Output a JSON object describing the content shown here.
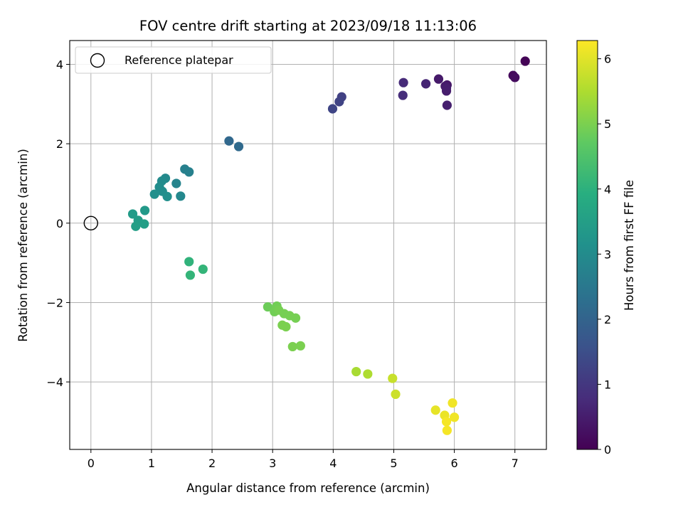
{
  "chart_data": {
    "type": "scatter",
    "title": "FOV centre drift starting at 2023/09/18 11:13:06",
    "xlabel": "Angular distance from reference (arcmin)",
    "ylabel": "Rotation from reference (arcmin)",
    "xlim": [
      -0.35,
      7.52
    ],
    "ylim": [
      -5.7,
      4.6
    ],
    "xticks": [
      0,
      1,
      2,
      3,
      4,
      5,
      6,
      7
    ],
    "yticks": [
      -4,
      -2,
      0,
      2,
      4
    ],
    "xtick_labels": [
      "0",
      "1",
      "2",
      "3",
      "4",
      "5",
      "6",
      "7"
    ],
    "ytick_labels": [
      "−4",
      "−2",
      "0",
      "2",
      "4"
    ],
    "grid": true,
    "legend": {
      "placement": "top-left",
      "entries": [
        "Reference platepar"
      ]
    },
    "reference_point": {
      "x": 0,
      "y": 0,
      "marker": "open circle"
    },
    "colorbar": {
      "label": "Hours from first FF file",
      "range": [
        0,
        6.28
      ],
      "ticks": [
        0,
        1,
        2,
        3,
        4,
        5,
        6
      ],
      "tick_labels": [
        "0",
        "1",
        "2",
        "3",
        "4",
        "5",
        "6"
      ],
      "colormap": "viridis"
    },
    "points": [
      {
        "x": 7.17,
        "y": 4.08,
        "c": 0.05
      },
      {
        "x": 6.97,
        "y": 3.72,
        "c": 0.15
      },
      {
        "x": 7.0,
        "y": 3.67,
        "c": 0.2
      },
      {
        "x": 5.74,
        "y": 3.63,
        "c": 0.45
      },
      {
        "x": 5.88,
        "y": 3.48,
        "c": 0.4
      },
      {
        "x": 5.85,
        "y": 3.45,
        "c": 0.45
      },
      {
        "x": 5.87,
        "y": 3.4,
        "c": 0.5
      },
      {
        "x": 5.87,
        "y": 3.33,
        "c": 0.5
      },
      {
        "x": 5.88,
        "y": 2.97,
        "c": 0.55
      },
      {
        "x": 5.53,
        "y": 3.51,
        "c": 0.65
      },
      {
        "x": 5.16,
        "y": 3.54,
        "c": 0.75
      },
      {
        "x": 5.15,
        "y": 3.22,
        "c": 0.8
      },
      {
        "x": 4.14,
        "y": 3.18,
        "c": 1.2
      },
      {
        "x": 4.1,
        "y": 3.06,
        "c": 1.25
      },
      {
        "x": 3.99,
        "y": 2.88,
        "c": 1.3
      },
      {
        "x": 2.28,
        "y": 2.07,
        "c": 2.1
      },
      {
        "x": 2.44,
        "y": 1.93,
        "c": 2.15
      },
      {
        "x": 1.55,
        "y": 1.36,
        "c": 2.7
      },
      {
        "x": 1.62,
        "y": 1.29,
        "c": 2.7
      },
      {
        "x": 1.41,
        "y": 1.0,
        "c": 2.8
      },
      {
        "x": 1.48,
        "y": 0.68,
        "c": 2.9
      },
      {
        "x": 1.23,
        "y": 1.13,
        "c": 2.95
      },
      {
        "x": 1.17,
        "y": 1.06,
        "c": 3.0
      },
      {
        "x": 1.13,
        "y": 0.91,
        "c": 3.05
      },
      {
        "x": 1.18,
        "y": 0.8,
        "c": 3.05
      },
      {
        "x": 1.05,
        "y": 0.73,
        "c": 3.1
      },
      {
        "x": 1.26,
        "y": 0.67,
        "c": 3.1
      },
      {
        "x": 0.89,
        "y": 0.32,
        "c": 3.35
      },
      {
        "x": 0.69,
        "y": 0.23,
        "c": 3.4
      },
      {
        "x": 0.78,
        "y": 0.07,
        "c": 3.45
      },
      {
        "x": 0.88,
        "y": -0.02,
        "c": 3.5
      },
      {
        "x": 0.74,
        "y": -0.08,
        "c": 3.5
      },
      {
        "x": 1.62,
        "y": -0.97,
        "c": 4.05
      },
      {
        "x": 1.85,
        "y": -1.16,
        "c": 4.1
      },
      {
        "x": 1.64,
        "y": -1.31,
        "c": 4.1
      },
      {
        "x": 2.92,
        "y": -2.11,
        "c": 4.85
      },
      {
        "x": 3.07,
        "y": -2.09,
        "c": 4.9
      },
      {
        "x": 3.03,
        "y": -2.23,
        "c": 4.9
      },
      {
        "x": 3.1,
        "y": -2.19,
        "c": 4.95
      },
      {
        "x": 3.19,
        "y": -2.28,
        "c": 4.95
      },
      {
        "x": 3.28,
        "y": -2.33,
        "c": 4.95
      },
      {
        "x": 3.38,
        "y": -2.39,
        "c": 4.95
      },
      {
        "x": 3.16,
        "y": -2.57,
        "c": 5.0
      },
      {
        "x": 3.22,
        "y": -2.61,
        "c": 5.0
      },
      {
        "x": 3.33,
        "y": -3.11,
        "c": 5.0
      },
      {
        "x": 3.46,
        "y": -3.09,
        "c": 5.0
      },
      {
        "x": 4.38,
        "y": -3.74,
        "c": 5.45
      },
      {
        "x": 4.57,
        "y": -3.8,
        "c": 5.5
      },
      {
        "x": 4.98,
        "y": -3.91,
        "c": 5.75
      },
      {
        "x": 5.03,
        "y": -4.31,
        "c": 5.8
      },
      {
        "x": 5.69,
        "y": -4.71,
        "c": 6.05
      },
      {
        "x": 5.84,
        "y": -4.84,
        "c": 6.1
      },
      {
        "x": 5.97,
        "y": -4.53,
        "c": 6.15
      },
      {
        "x": 6.0,
        "y": -4.89,
        "c": 6.15
      },
      {
        "x": 5.87,
        "y": -5.0,
        "c": 6.2
      },
      {
        "x": 5.88,
        "y": -5.22,
        "c": 6.2
      }
    ]
  }
}
